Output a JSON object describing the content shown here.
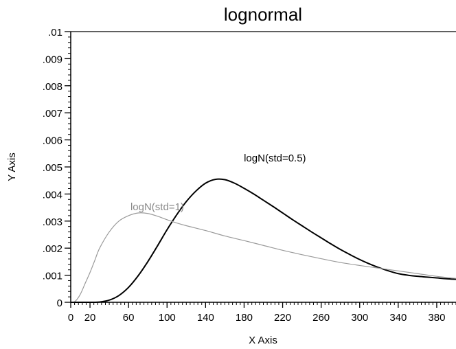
{
  "chart_data": {
    "type": "line",
    "title": "lognormal",
    "xlabel": "X Axis",
    "ylabel": "Y Axis",
    "xlim": [
      0,
      400
    ],
    "ylim": [
      0,
      0.01
    ],
    "x_ticks": [
      "0",
      "20",
      "60",
      "100",
      "140",
      "180",
      "220",
      "260",
      "300",
      "340",
      "380"
    ],
    "x_tick_values": [
      0,
      20,
      60,
      100,
      140,
      180,
      220,
      260,
      300,
      340,
      380
    ],
    "y_ticks": [
      "0",
      ".001",
      ".002",
      ".003",
      ".004",
      ".005",
      ".006",
      ".007",
      ".008",
      ".009",
      ".01"
    ],
    "y_tick_values": [
      0,
      0.001,
      0.002,
      0.003,
      0.004,
      0.005,
      0.006,
      0.007,
      0.008,
      0.009,
      0.01
    ],
    "grid": false,
    "annotations": [
      {
        "text": "logN(std=0.5)",
        "x": 212,
        "y": 0.0052
      },
      {
        "text": "logN(std=1)",
        "x": 62,
        "y": 0.0034
      }
    ],
    "series": [
      {
        "color": "#000000",
        "x": [
          0,
          20,
          30,
          40,
          50,
          60,
          70,
          80,
          90,
          100,
          110,
          120,
          130,
          140,
          150,
          160,
          170,
          180,
          190,
          200,
          210,
          220,
          230,
          240,
          250,
          260,
          270,
          280,
          290,
          300,
          310,
          320,
          330,
          340,
          350,
          360,
          370,
          380,
          390,
          400
        ],
        "values": [
          0,
          0,
          1e-05,
          8e-05,
          0.00025,
          0.00055,
          0.00098,
          0.0015,
          0.00208,
          0.00268,
          0.00323,
          0.00372,
          0.00411,
          0.0044,
          0.00454,
          0.00453,
          0.0044,
          0.00421,
          0.004,
          0.00377,
          0.00354,
          0.0033,
          0.00306,
          0.00283,
          0.0026,
          0.00238,
          0.00216,
          0.00195,
          0.00176,
          0.00158,
          0.00142,
          0.00128,
          0.00116,
          0.00106,
          0.001,
          0.00096,
          0.00093,
          0.0009,
          0.00087,
          0.00085
        ]
      },
      {
        "color": "#9a9a9a",
        "x": [
          0,
          5,
          10,
          15,
          20,
          25,
          30,
          40,
          50,
          60,
          70,
          80,
          90,
          100,
          110,
          120,
          140,
          160,
          180,
          200,
          220,
          240,
          260,
          280,
          300,
          320,
          340,
          360,
          380,
          400
        ],
        "values": [
          0,
          5e-05,
          0.0003,
          0.0007,
          0.0011,
          0.00155,
          0.002,
          0.0026,
          0.003,
          0.0032,
          0.0033,
          0.00328,
          0.00318,
          0.00305,
          0.00293,
          0.00283,
          0.00265,
          0.00245,
          0.00228,
          0.0021,
          0.00192,
          0.00176,
          0.00161,
          0.00147,
          0.00136,
          0.00126,
          0.00116,
          0.00106,
          0.00096,
          0.00088
        ]
      }
    ]
  }
}
